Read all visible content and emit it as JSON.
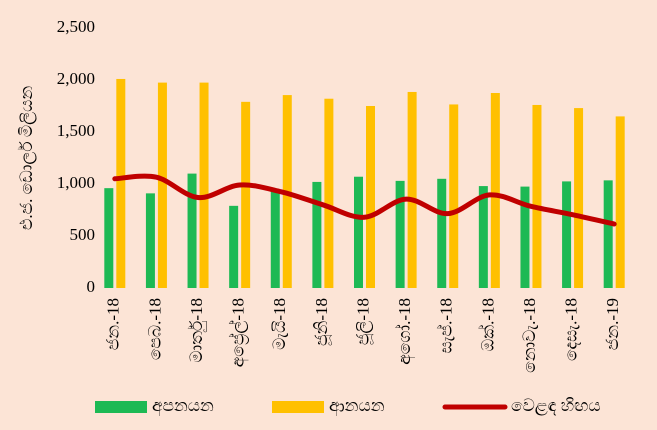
{
  "chart_data": {
    "type": "bar",
    "y_label": "එ.ජ. ඩොලර් මිලියන",
    "categories": [
      "ජන.-18",
      "පෙබ.-18",
      "මාර්තු-18",
      "අප්‍රේල්-18",
      "මැයි-18",
      "ජූනි-18",
      "ජූලි-18",
      "අගෝ.-18",
      "සැප්.-18",
      "ඔක්.-18",
      "නොවැ.-18",
      "දෙසැ.-18",
      "ජන.-19"
    ],
    "series": [
      {
        "name": "අපනයන",
        "type": "bar",
        "color": "#1db954",
        "values": [
          960,
          910,
          1100,
          790,
          930,
          1020,
          1070,
          1030,
          1050,
          980,
          975,
          1025,
          1035
        ]
      },
      {
        "name": "ආනයන",
        "type": "bar",
        "color": "#ffc000",
        "values": [
          2010,
          1975,
          1975,
          1790,
          1855,
          1820,
          1750,
          1885,
          1765,
          1875,
          1760,
          1730,
          1650
        ]
      },
      {
        "name": "වෙළඳ හිඟය",
        "type": "line",
        "smooth": true,
        "color": "#c00000",
        "values": [
          1050,
          1065,
          870,
          990,
          925,
          800,
          680,
          855,
          715,
          895,
          785,
          705,
          615
        ]
      }
    ],
    "ylim": [
      0,
      2500
    ],
    "yticks": [
      0,
      500,
      {
        "value": 1000,
        "label": "1,000"
      },
      {
        "value": 1500,
        "label": "1,500"
      },
      {
        "value": 2000,
        "label": "2,000"
      },
      {
        "value": 2500,
        "label": "2,500"
      }
    ],
    "grid": false,
    "legend": "bottom"
  }
}
